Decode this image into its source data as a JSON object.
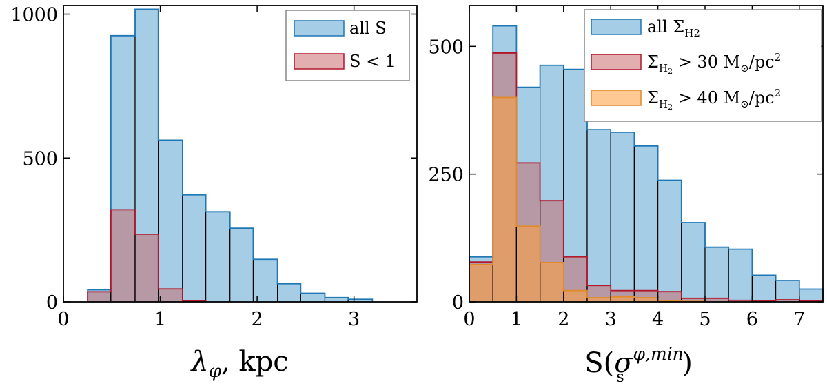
{
  "chart_data": [
    {
      "type": "histogram",
      "xlabel": "λ_φ, kpc",
      "xlabel_parts": {
        "symbol": "λ",
        "sub": "φ",
        "rest": ", kpc"
      },
      "xlim": [
        0,
        3.65
      ],
      "ylim": [
        0,
        1030
      ],
      "xticks": [
        0,
        1,
        2,
        3
      ],
      "yticks": [
        0,
        500,
        1000
      ],
      "legend_position": "top-right",
      "series": [
        {
          "name": "all S",
          "legend_label": "all S",
          "fill": "#a6cde6",
          "stroke": "#1f77b4",
          "bins": [
            {
              "x0": 0.25,
              "x1": 0.49,
              "value": 42
            },
            {
              "x0": 0.49,
              "x1": 0.74,
              "value": 925
            },
            {
              "x0": 0.74,
              "x1": 0.98,
              "value": 1017
            },
            {
              "x0": 0.98,
              "x1": 1.23,
              "value": 562
            },
            {
              "x0": 1.23,
              "x1": 1.47,
              "value": 372
            },
            {
              "x0": 1.47,
              "x1": 1.72,
              "value": 313
            },
            {
              "x0": 1.72,
              "x1": 1.96,
              "value": 256
            },
            {
              "x0": 1.96,
              "x1": 2.21,
              "value": 148
            },
            {
              "x0": 2.21,
              "x1": 2.45,
              "value": 63
            },
            {
              "x0": 2.45,
              "x1": 2.7,
              "value": 30
            },
            {
              "x0": 2.7,
              "x1": 2.94,
              "value": 15
            },
            {
              "x0": 2.94,
              "x1": 3.19,
              "value": 9
            }
          ]
        },
        {
          "name": "S < 1",
          "legend_label": "S < 1",
          "fill": "rgba(200,100,100,0.5)",
          "stroke": "#b2182b",
          "bins": [
            {
              "x0": 0.25,
              "x1": 0.49,
              "value": 35
            },
            {
              "x0": 0.49,
              "x1": 0.74,
              "value": 320
            },
            {
              "x0": 0.74,
              "x1": 0.98,
              "value": 235
            },
            {
              "x0": 0.98,
              "x1": 1.23,
              "value": 45
            },
            {
              "x0": 1.23,
              "x1": 1.47,
              "value": 3
            }
          ]
        }
      ]
    },
    {
      "type": "histogram",
      "xlabel": "S(σ_s^{φ,min})",
      "xlabel_parts": {
        "pre": "S(",
        "symbol": "σ",
        "sup": "φ,min",
        "sub": "s",
        "post": ")"
      },
      "xlim": [
        0,
        7.5
      ],
      "ylim": [
        0,
        580
      ],
      "xticks": [
        0,
        1,
        2,
        3,
        4,
        5,
        6,
        7
      ],
      "yticks": [
        0,
        250,
        500
      ],
      "legend_position": "top-right",
      "series": [
        {
          "name": "all ΣH2",
          "legend_label": {
            "pre": "all Σ",
            "sub": "H2"
          },
          "fill": "#a6cde6",
          "stroke": "#1f77b4",
          "bins": [
            {
              "x0": 0.0,
              "x1": 0.5,
              "value": 88
            },
            {
              "x0": 0.5,
              "x1": 1.0,
              "value": 540
            },
            {
              "x0": 1.0,
              "x1": 1.5,
              "value": 420
            },
            {
              "x0": 1.5,
              "x1": 2.0,
              "value": 463
            },
            {
              "x0": 2.0,
              "x1": 2.5,
              "value": 455
            },
            {
              "x0": 2.5,
              "x1": 3.0,
              "value": 337
            },
            {
              "x0": 3.0,
              "x1": 3.5,
              "value": 332
            },
            {
              "x0": 3.5,
              "x1": 4.0,
              "value": 305
            },
            {
              "x0": 4.0,
              "x1": 4.5,
              "value": 238
            },
            {
              "x0": 4.5,
              "x1": 5.0,
              "value": 155
            },
            {
              "x0": 5.0,
              "x1": 5.5,
              "value": 107
            },
            {
              "x0": 5.5,
              "x1": 6.0,
              "value": 103
            },
            {
              "x0": 6.0,
              "x1": 6.5,
              "value": 52
            },
            {
              "x0": 6.5,
              "x1": 7.0,
              "value": 42
            },
            {
              "x0": 7.0,
              "x1": 7.5,
              "value": 25
            }
          ]
        },
        {
          "name": "ΣH2 > 30 M⊙/pc2",
          "legend_label": {
            "pre": "Σ",
            "sub": "H",
            "subsub": "2",
            "mid": " > 30 M",
            "msub": "⊙",
            "post": "/pc",
            "sup": "2"
          },
          "fill": "rgba(200,100,100,0.5)",
          "stroke": "#b2182b",
          "bins": [
            {
              "x0": 0.0,
              "x1": 0.5,
              "value": 78
            },
            {
              "x0": 0.5,
              "x1": 1.0,
              "value": 487
            },
            {
              "x0": 1.0,
              "x1": 1.5,
              "value": 272
            },
            {
              "x0": 1.5,
              "x1": 2.0,
              "value": 198
            },
            {
              "x0": 2.0,
              "x1": 2.5,
              "value": 88
            },
            {
              "x0": 2.5,
              "x1": 3.0,
              "value": 32
            },
            {
              "x0": 3.0,
              "x1": 3.5,
              "value": 22
            },
            {
              "x0": 3.5,
              "x1": 4.0,
              "value": 22
            },
            {
              "x0": 4.0,
              "x1": 4.5,
              "value": 20
            },
            {
              "x0": 4.5,
              "x1": 5.0,
              "value": 7
            },
            {
              "x0": 5.0,
              "x1": 5.5,
              "value": 7
            },
            {
              "x0": 5.5,
              "x1": 6.0,
              "value": 3
            },
            {
              "x0": 6.0,
              "x1": 6.5,
              "value": 2
            },
            {
              "x0": 6.5,
              "x1": 7.0,
              "value": 4
            },
            {
              "x0": 7.0,
              "x1": 7.5,
              "value": 2
            }
          ]
        },
        {
          "name": "ΣH2 > 40 M⊙/pc2",
          "legend_label": {
            "pre": "Σ",
            "sub": "H",
            "subsub": "2",
            "mid": " > 40 M",
            "msub": "⊙",
            "post": "/pc",
            "sup": "2"
          },
          "fill": "rgba(255,163,60,0.55)",
          "stroke": "#e08a2c",
          "bins": [
            {
              "x0": 0.0,
              "x1": 0.5,
              "value": 73
            },
            {
              "x0": 0.5,
              "x1": 1.0,
              "value": 400
            },
            {
              "x0": 1.0,
              "x1": 1.5,
              "value": 148
            },
            {
              "x0": 1.5,
              "x1": 2.0,
              "value": 77
            },
            {
              "x0": 2.0,
              "x1": 2.5,
              "value": 22
            },
            {
              "x0": 2.5,
              "x1": 3.0,
              "value": 8
            },
            {
              "x0": 3.0,
              "x1": 3.5,
              "value": 10
            },
            {
              "x0": 3.5,
              "x1": 4.0,
              "value": 8
            },
            {
              "x0": 4.0,
              "x1": 4.5,
              "value": 2
            },
            {
              "x0": 4.5,
              "x1": 5.0,
              "value": 1
            }
          ]
        }
      ]
    }
  ]
}
